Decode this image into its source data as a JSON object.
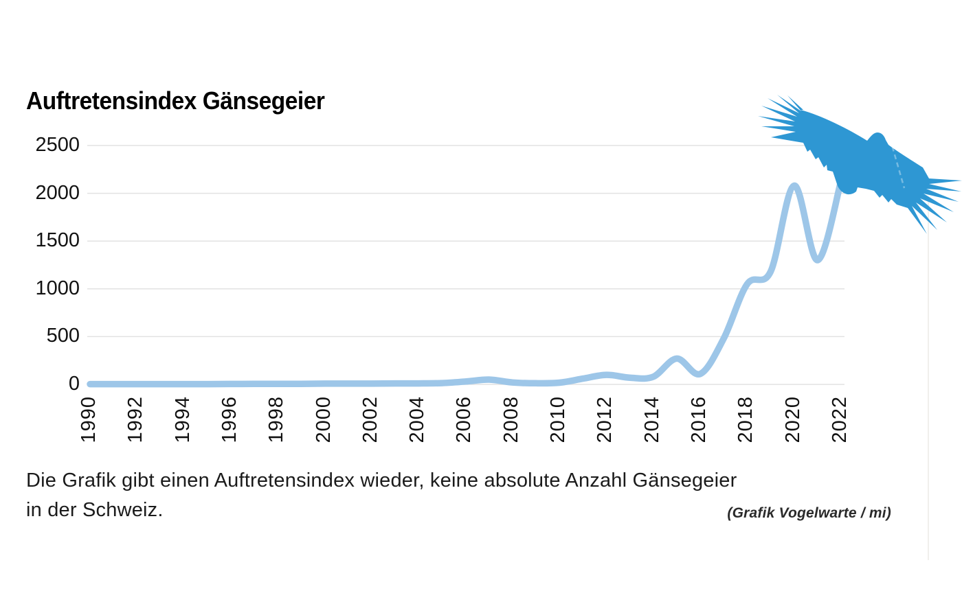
{
  "page": {
    "title": "Auftretensindex Gänsegeier",
    "caption_line1": "Die Grafik gibt einen Auftretensindex wieder, keine absolute Anzahl Gänsegeier",
    "caption_line2": "in der Schweiz.",
    "source": "(Grafik Vogelwarte / mi)"
  },
  "icons": {
    "bird": "griffon-vulture-silhouette"
  },
  "colors": {
    "line": "#9DC6E8",
    "bird": "#2E97D3",
    "grid": "#E2E2E2",
    "right_border": "#ECEAE5",
    "text": "#111111"
  },
  "chart_data": {
    "type": "line",
    "title": "Auftretensindex Gänsegeier",
    "series_name": "Auftretensindex Gänsegeier",
    "x": [
      1990,
      1991,
      1992,
      1993,
      1994,
      1995,
      1996,
      1997,
      1998,
      1999,
      2000,
      2001,
      2002,
      2003,
      2004,
      2005,
      2006,
      2007,
      2008,
      2009,
      2010,
      2011,
      2012,
      2013,
      2014,
      2015,
      2016,
      2017,
      2018,
      2019,
      2020,
      2021,
      2022
    ],
    "values": [
      3,
      3,
      3,
      3,
      3,
      3,
      4,
      5,
      5,
      6,
      8,
      8,
      8,
      10,
      10,
      14,
      30,
      50,
      20,
      12,
      18,
      60,
      100,
      70,
      80,
      270,
      110,
      480,
      1050,
      1180,
      2080,
      1300,
      2130
    ],
    "xlabel": "",
    "ylabel": "",
    "xlim": [
      1990,
      2022
    ],
    "ylim": [
      0,
      2500
    ],
    "yticks": [
      0,
      500,
      1000,
      1500,
      2000,
      2500
    ],
    "xtick_labels": [
      "1990",
      "1992",
      "1994",
      "1996",
      "1998",
      "2000",
      "2002",
      "2004",
      "2006",
      "2008",
      "2010",
      "2012",
      "2014",
      "2016",
      "2018",
      "2020",
      "2022"
    ],
    "grid": "horizontal-only",
    "legend": "none",
    "line_style": "smooth, thick, rounded caps",
    "annotation": "Blue griffon-vulture silhouette overlaid at top right of plot"
  }
}
